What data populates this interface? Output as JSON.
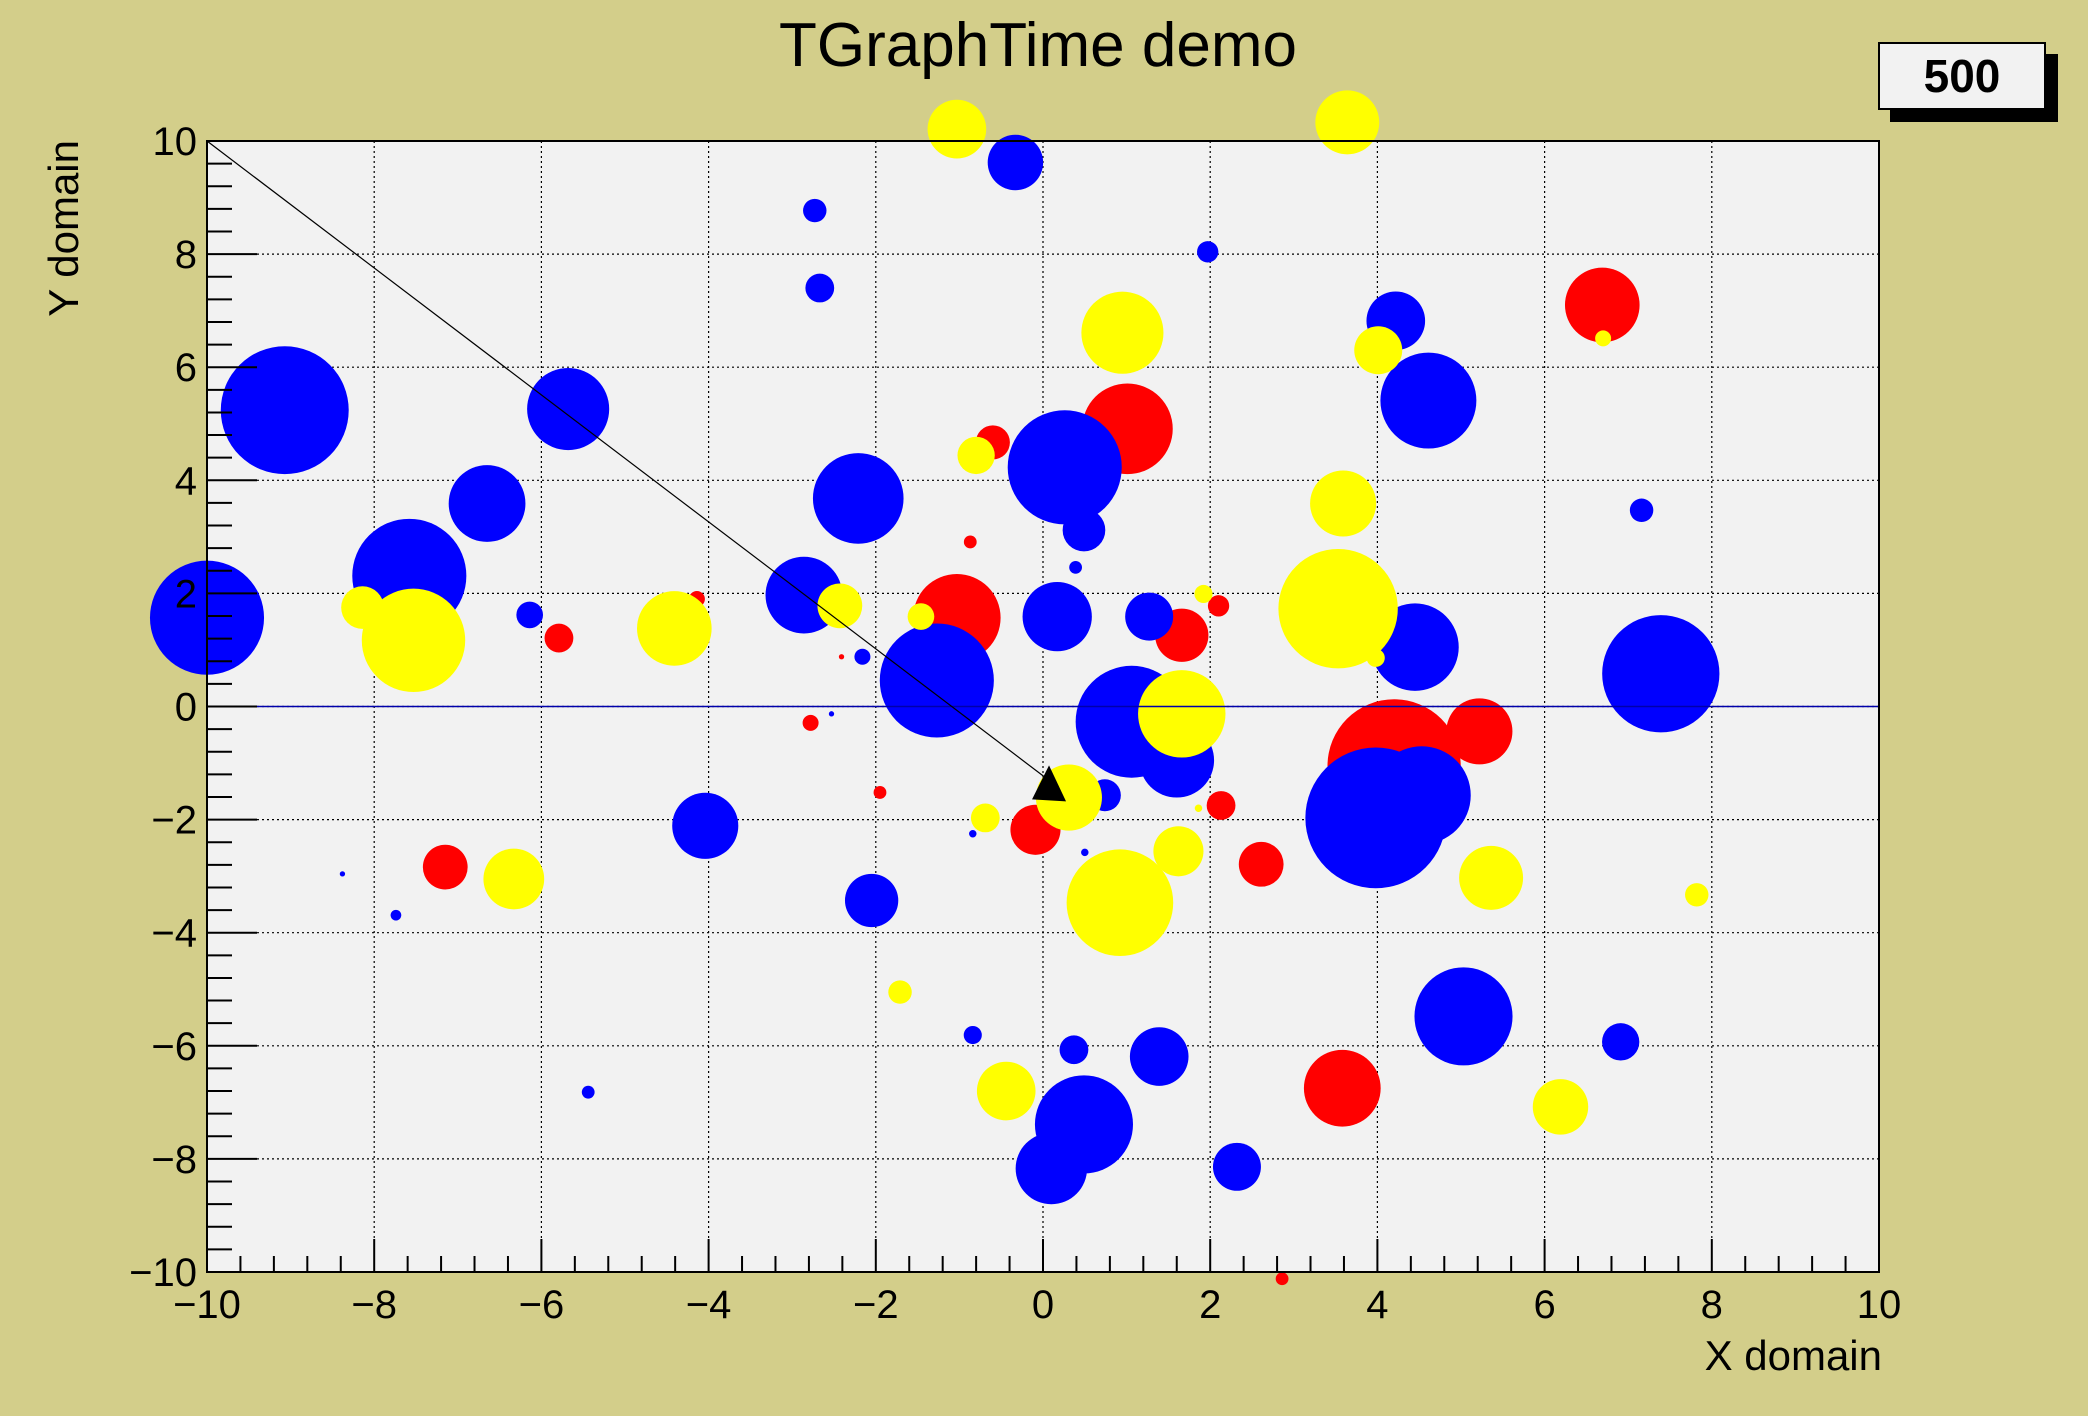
{
  "chart_data": {
    "type": "scatter",
    "title": "TGraphTime demo",
    "xlabel": "X domain",
    "ylabel": "Y domain",
    "xlim": [
      -10,
      10
    ],
    "ylim": [
      -10,
      10
    ],
    "grid": true,
    "x_ticks": [
      "−10",
      "−8",
      "−6",
      "−4",
      "−2",
      "0",
      "2",
      "4",
      "6",
      "8",
      "10"
    ],
    "y_ticks": [
      "−10",
      "−8",
      "−6",
      "−4",
      "−2",
      "0",
      "2",
      "4",
      "6",
      "8",
      "10"
    ],
    "time_step_label": "500",
    "colors": {
      "background": "#d3ce8a",
      "plot_background": "#f2f2f2",
      "red": "#ff0000",
      "blue": "#0000ff",
      "yellow": "#ffff00",
      "zero_line": "#0000aa"
    },
    "reference_line": {
      "from": [
        -10,
        10
      ],
      "to": [
        0.12,
        -1.36
      ]
    },
    "arrow_marker": {
      "x": 0.12,
      "y": -1.36,
      "shape": "triangle"
    },
    "horizontal_line_y": 0,
    "series": [
      {
        "color": "red",
        "points": [
          [
            1.01,
            4.91,
            8.5
          ],
          [
            -0.6,
            4.67,
            3.2
          ],
          [
            -1.03,
            1.57,
            8.2
          ],
          [
            -0.87,
            2.91,
            1.2
          ],
          [
            -4.14,
            1.9,
            1.5
          ],
          [
            -5.79,
            1.21,
            2.7
          ],
          [
            -2.41,
            0.88,
            0.5
          ],
          [
            -2.78,
            -0.29,
            1.5
          ],
          [
            -1.95,
            -1.52,
            1.2
          ],
          [
            1.66,
            1.26,
            5
          ],
          [
            2.1,
            1.78,
            2
          ],
          [
            6.69,
            7.1,
            7
          ],
          [
            4.2,
            -1.05,
            12.5
          ],
          [
            5.22,
            -0.44,
            6.2
          ],
          [
            -0.09,
            -2.18,
            4.7
          ],
          [
            2.13,
            -1.75,
            2.7
          ],
          [
            2.61,
            -2.79,
            4.2
          ],
          [
            -7.15,
            -2.84,
            4.2
          ],
          [
            3.58,
            -6.75,
            7.2
          ],
          [
            2.86,
            -10.12,
            1.2
          ]
        ]
      },
      {
        "color": "blue",
        "points": [
          [
            -9.07,
            5.24,
            12
          ],
          [
            -10.0,
            1.57,
            10.7
          ],
          [
            -7.58,
            2.31,
            10.7
          ],
          [
            -5.68,
            5.26,
            7.7
          ],
          [
            -6.65,
            3.59,
            7.2
          ],
          [
            -6.14,
            1.62,
            2.5
          ],
          [
            -2.73,
            8.77,
            2.2
          ],
          [
            -2.67,
            7.4,
            2.7
          ],
          [
            -2.21,
            3.68,
            8.5
          ],
          [
            -2.86,
            1.97,
            7.2
          ],
          [
            -2.16,
            0.88,
            1.5
          ],
          [
            -1.27,
            0.46,
            10.7
          ],
          [
            -0.33,
            9.62,
            5.2
          ],
          [
            0.26,
            4.23,
            10.7
          ],
          [
            0.49,
            3.12,
            4
          ],
          [
            0.39,
            2.46,
            1.2
          ],
          [
            0.17,
            1.59,
            6.5
          ],
          [
            1.97,
            8.04,
            2
          ],
          [
            1.27,
            1.59,
            4.5
          ],
          [
            1.06,
            -0.27,
            10.5
          ],
          [
            1.6,
            -0.95,
            7
          ],
          [
            0.74,
            -1.57,
            3
          ],
          [
            4.22,
            6.82,
            5.5
          ],
          [
            4.61,
            5.41,
            9
          ],
          [
            7.16,
            3.47,
            2.2
          ],
          [
            4.45,
            1.05,
            8.2
          ],
          [
            7.39,
            0.58,
            11
          ],
          [
            3.98,
            -1.97,
            13.2
          ],
          [
            4.53,
            -1.57,
            9.2
          ],
          [
            -4.04,
            -2.11,
            6.2
          ],
          [
            -2.05,
            -3.43,
            5
          ],
          [
            -8.38,
            -2.96,
            0.5
          ],
          [
            -7.74,
            -3.69,
            1
          ],
          [
            -5.44,
            -6.82,
            1.2
          ],
          [
            -0.84,
            -5.81,
            1.7
          ],
          [
            0.37,
            -6.07,
            2.7
          ],
          [
            0.49,
            -7.39,
            9.2
          ],
          [
            0.1,
            -8.17,
            6.7
          ],
          [
            1.39,
            -6.19,
            5.5
          ],
          [
            2.32,
            -8.14,
            4.5
          ],
          [
            5.03,
            -5.48,
            9.2
          ],
          [
            6.91,
            -5.93,
            3.5
          ],
          [
            -0.84,
            -2.25,
            0.7
          ],
          [
            0.5,
            -2.58,
            0.7
          ],
          [
            -2.53,
            -0.13,
            0.5
          ]
        ]
      },
      {
        "color": "yellow",
        "points": [
          [
            -1.03,
            10.21,
            5.5
          ],
          [
            3.64,
            10.33,
            6
          ],
          [
            0.95,
            6.61,
            7.7
          ],
          [
            4.01,
            6.3,
            4.5
          ],
          [
            6.7,
            6.51,
            1.5
          ],
          [
            -0.8,
            4.44,
            3.5
          ],
          [
            3.59,
            3.59,
            6.2
          ],
          [
            3.53,
            1.73,
            11.2
          ],
          [
            3.98,
            0.86,
            1.7
          ],
          [
            1.92,
            1.99,
            1.7
          ],
          [
            1.66,
            -0.13,
            8.2
          ],
          [
            -2.43,
            1.78,
            4.2
          ],
          [
            -1.46,
            1.59,
            2.5
          ],
          [
            -4.41,
            1.38,
            7
          ],
          [
            -8.14,
            1.75,
            4
          ],
          [
            -7.53,
            1.17,
            9.7
          ],
          [
            -6.33,
            -3.05,
            5.7
          ],
          [
            0.31,
            -1.61,
            6.2
          ],
          [
            -0.69,
            -1.97,
            2.7
          ],
          [
            1.62,
            -2.56,
            4.7
          ],
          [
            0.92,
            -3.47,
            10
          ],
          [
            1.86,
            -1.8,
            0.7
          ],
          [
            5.36,
            -3.03,
            6
          ],
          [
            7.82,
            -3.33,
            2.2
          ],
          [
            -1.71,
            -5.05,
            2.2
          ],
          [
            -0.44,
            -6.8,
            5.5
          ],
          [
            6.19,
            -7.08,
            5.2
          ]
        ]
      }
    ]
  }
}
